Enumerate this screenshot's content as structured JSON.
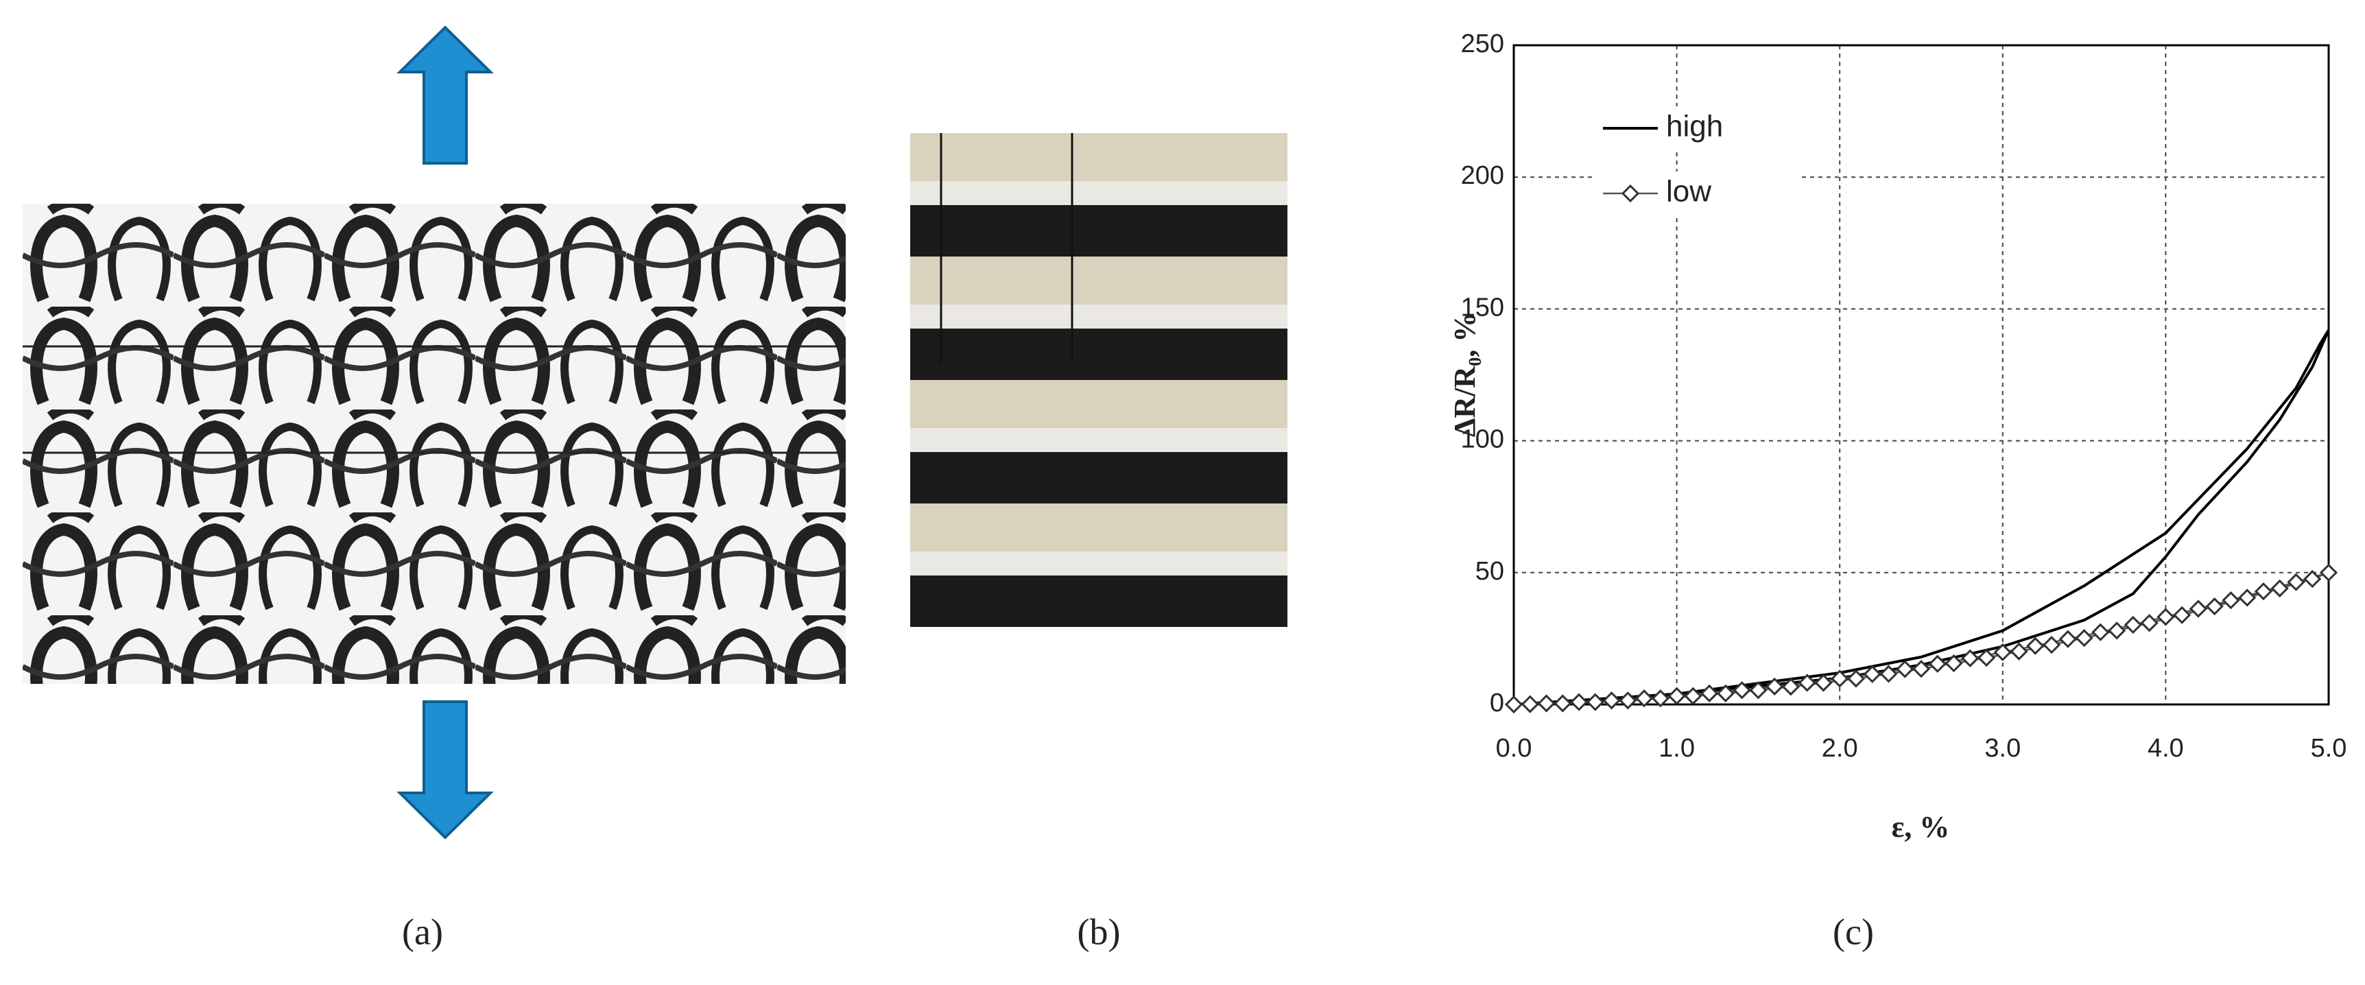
{
  "panels": [
    "(a)",
    "(b)",
    "(c)"
  ],
  "chart_data": {
    "type": "line",
    "xlabel": "ε, %",
    "ylabel": "ΔR/R₀, %",
    "xlim": [
      0,
      5
    ],
    "ylim": [
      0,
      250
    ],
    "xticks": [
      {
        "value": 0,
        "label": "0.0"
      },
      {
        "value": 1,
        "label": "1.0"
      },
      {
        "value": 2,
        "label": "2.0"
      },
      {
        "value": 3,
        "label": "3.0"
      },
      {
        "value": 4,
        "label": "4.0"
      },
      {
        "value": 5,
        "label": "5.0"
      }
    ],
    "yticks": [
      0,
      50,
      100,
      150,
      200,
      250
    ],
    "grid": true,
    "legend": "upper left",
    "series": [
      {
        "name": "high",
        "color": "#000000",
        "marker": "none",
        "x": [
          0,
          0.5,
          1,
          1.5,
          2,
          2.5,
          3,
          3.5,
          4,
          4.5,
          4.8,
          4.95,
          5,
          4.9,
          4.7,
          4.5,
          4.2,
          4,
          3.8,
          3.5,
          3,
          2.5,
          2,
          1.5,
          1,
          0.5,
          0
        ],
        "values": [
          0,
          2,
          4,
          8,
          12,
          18,
          28,
          45,
          65,
          97,
          120,
          137,
          142,
          128,
          108,
          92,
          72,
          56,
          42,
          32,
          22,
          15,
          10,
          7,
          4,
          1.5,
          0
        ]
      },
      {
        "name": "low",
        "color": "#555555",
        "marker": "diamond",
        "x": [
          0,
          0.2,
          0.4,
          0.6,
          0.8,
          1.0,
          1.2,
          1.4,
          1.6,
          1.8,
          2.0,
          2.2,
          2.4,
          2.6,
          2.8,
          3.0,
          3.2,
          3.4,
          3.6,
          3.8,
          4.0,
          4.2,
          4.4,
          4.6,
          4.8,
          5.0,
          4.9,
          4.7,
          4.5,
          4.3,
          4.1,
          3.9,
          3.7,
          3.5,
          3.3,
          3.1,
          2.9,
          2.7,
          2.5,
          2.3,
          2.1,
          1.9,
          1.7,
          1.5,
          1.3,
          1.1,
          0.9,
          0.7,
          0.5,
          0.3,
          0.1
        ],
        "values": [
          0,
          0.4,
          0.9,
          1.5,
          2.3,
          3.2,
          4.2,
          5.4,
          6.8,
          8.2,
          9.8,
          11.5,
          13.4,
          15.4,
          17.5,
          19.8,
          22.2,
          24.8,
          27.4,
          30.2,
          33.2,
          36.3,
          39.5,
          42.9,
          46.4,
          50,
          47.6,
          44.0,
          40.5,
          37.2,
          33.9,
          30.9,
          28.0,
          25.2,
          22.6,
          20.1,
          17.7,
          15.6,
          13.5,
          11.6,
          9.8,
          8.2,
          6.7,
          5.4,
          4.2,
          3.2,
          2.3,
          1.5,
          0.9,
          0.4,
          0.1
        ]
      }
    ]
  }
}
